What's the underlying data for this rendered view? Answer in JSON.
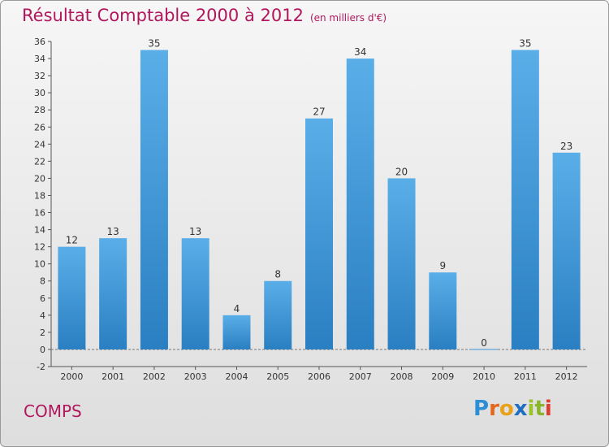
{
  "chart_data": {
    "type": "bar",
    "title": "Résultat Comptable 2000 à 2012",
    "subtitle": "(en milliers d'€)",
    "categories": [
      "2000",
      "2001",
      "2002",
      "2003",
      "2004",
      "2005",
      "2006",
      "2007",
      "2008",
      "2009",
      "2010",
      "2011",
      "2012"
    ],
    "values": [
      12,
      13,
      35,
      13,
      4,
      8,
      27,
      34,
      20,
      9,
      0,
      35,
      23
    ],
    "ylim": [
      -2,
      36
    ],
    "yticks": [
      -2,
      0,
      2,
      4,
      6,
      8,
      10,
      12,
      14,
      16,
      18,
      20,
      22,
      24,
      26,
      28,
      30,
      32,
      34,
      36
    ],
    "grid": false,
    "legend": "none",
    "xlabel": "",
    "ylabel": "",
    "bar_color": "#3f98dc"
  },
  "footer": {
    "commune": "COMPS",
    "brand_letters": [
      "P",
      "r",
      "o",
      "x",
      "i",
      "t",
      "i"
    ],
    "brand": "Proxiti"
  }
}
